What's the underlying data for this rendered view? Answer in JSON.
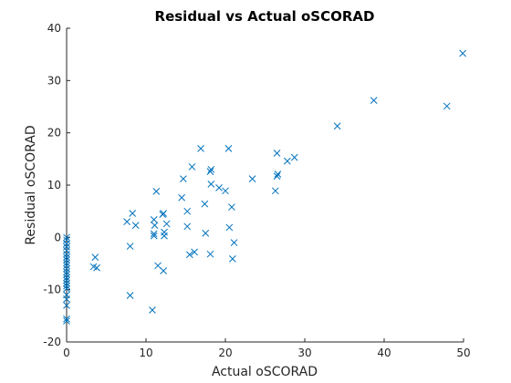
{
  "chart_data": {
    "type": "scatter",
    "title": "Residual vs Actual oSCORAD",
    "xlabel": "Actual oSCORAD",
    "ylabel": "Residual oSCORAD",
    "xlim": [
      0,
      50
    ],
    "ylim": [
      -20,
      40
    ],
    "xticks": [
      0,
      10,
      20,
      30,
      40,
      50
    ],
    "yticks": [
      -20,
      -10,
      0,
      10,
      20,
      30,
      40
    ],
    "grid": false,
    "legend": "none",
    "marker": "x",
    "marker_color": "#0072BD",
    "series": [
      {
        "points": [
          [
            0,
            0
          ],
          [
            0,
            -0.5
          ],
          [
            0,
            -1.2
          ],
          [
            0,
            -1.8
          ],
          [
            0,
            -2.5
          ],
          [
            0,
            -3.2
          ],
          [
            0,
            -3.8
          ],
          [
            0,
            -4.3
          ],
          [
            0,
            -4.9
          ],
          [
            0,
            -5.4
          ],
          [
            0,
            -6
          ],
          [
            0,
            -6.6
          ],
          [
            0,
            -7.1
          ],
          [
            0,
            -7.7
          ],
          [
            0,
            -8.2
          ],
          [
            0,
            -8.8
          ],
          [
            0,
            -9.3
          ],
          [
            0,
            -9.8
          ],
          [
            0,
            -11
          ],
          [
            0,
            -11.8
          ],
          [
            0,
            -13
          ],
          [
            0,
            -15.6
          ],
          [
            0,
            -16
          ],
          [
            3.6,
            -3.8
          ],
          [
            3.4,
            -5.6
          ],
          [
            3.8,
            -5.8
          ],
          [
            7.6,
            3
          ],
          [
            8.3,
            4.6
          ],
          [
            8.7,
            2.3
          ],
          [
            8,
            -1.7
          ],
          [
            8,
            -11.1
          ],
          [
            10.8,
            -13.9
          ],
          [
            11,
            0.3
          ],
          [
            11,
            0.7
          ],
          [
            11.1,
            2.3
          ],
          [
            11,
            3.4
          ],
          [
            11.3,
            8.8
          ],
          [
            11.5,
            -5.4
          ],
          [
            12.1,
            4.4
          ],
          [
            12.2,
            4.6
          ],
          [
            12.3,
            1
          ],
          [
            12.3,
            0.3
          ],
          [
            12.6,
            2.6
          ],
          [
            12.2,
            -6.4
          ],
          [
            14.5,
            7.6
          ],
          [
            14.7,
            11.2
          ],
          [
            15.2,
            5
          ],
          [
            15.2,
            2.1
          ],
          [
            15.5,
            -3.3
          ],
          [
            15.8,
            13.5
          ],
          [
            16.1,
            -2.8
          ],
          [
            16.9,
            17
          ],
          [
            17.4,
            6.4
          ],
          [
            17.5,
            0.8
          ],
          [
            18.1,
            -3.2
          ],
          [
            18.1,
            12.6
          ],
          [
            18.2,
            13
          ],
          [
            18.2,
            10.2
          ],
          [
            19.2,
            9.5
          ],
          [
            20,
            8.9
          ],
          [
            20.4,
            17
          ],
          [
            20.5,
            1.9
          ],
          [
            20.8,
            5.8
          ],
          [
            21.1,
            -1
          ],
          [
            20.9,
            -4.1
          ],
          [
            23.4,
            11.2
          ],
          [
            26.3,
            8.9
          ],
          [
            26.5,
            16.1
          ],
          [
            26.5,
            11.7
          ],
          [
            26.6,
            12.1
          ],
          [
            27.8,
            14.6
          ],
          [
            28.7,
            15.3
          ],
          [
            34.1,
            21.3
          ],
          [
            38.7,
            26.2
          ],
          [
            47.9,
            25.1
          ],
          [
            49.9,
            35.2
          ]
        ]
      }
    ]
  }
}
